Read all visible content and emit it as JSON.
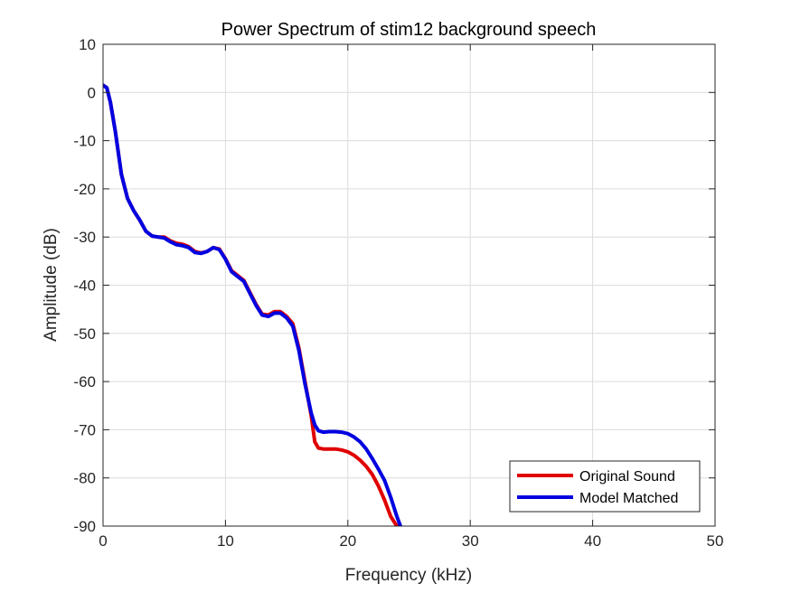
{
  "chart_data": {
    "type": "line",
    "title": "Power Spectrum of stim12 background speech",
    "xlabel": "Frequency (kHz)",
    "ylabel": "Amplitude (dB)",
    "xlim": [
      0,
      50
    ],
    "ylim": [
      -90,
      10
    ],
    "xticks": [
      "0",
      "10",
      "20",
      "30",
      "40",
      "50"
    ],
    "yticks": [
      "10",
      "0",
      "-10",
      "-20",
      "-30",
      "-40",
      "-50",
      "-60",
      "-70",
      "-80",
      "-90"
    ],
    "grid": true,
    "legend_position": "bottom-right",
    "series": [
      {
        "name": "Original Sound",
        "color": "#e00000",
        "x": [
          0,
          0.3,
          0.6,
          1.0,
          1.5,
          2.0,
          2.5,
          3.0,
          3.5,
          4.0,
          4.5,
          5.0,
          5.5,
          6.0,
          6.5,
          7.0,
          7.5,
          8.0,
          8.5,
          9.0,
          9.5,
          10.0,
          10.5,
          11.0,
          11.5,
          12.0,
          12.5,
          13.0,
          13.5,
          14.0,
          14.5,
          15.0,
          15.5,
          16.0,
          16.5,
          17.0,
          17.3,
          17.6,
          18.0,
          18.5,
          19.0,
          19.5,
          20.0,
          20.5,
          21.0,
          21.5,
          22.0,
          22.5,
          23.0,
          23.5,
          24.0
        ],
        "values": [
          1.5,
          1.0,
          -2.0,
          -8.0,
          -17.0,
          -22.0,
          -24.5,
          -26.5,
          -28.8,
          -29.8,
          -30.0,
          -30.0,
          -30.8,
          -31.3,
          -31.5,
          -32.0,
          -33.0,
          -33.3,
          -33.0,
          -32.2,
          -32.5,
          -34.5,
          -37.0,
          -38.0,
          -39.0,
          -41.5,
          -44.0,
          -46.0,
          -46.2,
          -45.5,
          -45.5,
          -46.5,
          -48.0,
          -53.0,
          -60.0,
          -67.0,
          -72.5,
          -73.8,
          -74.0,
          -74.0,
          -74.0,
          -74.2,
          -74.6,
          -75.3,
          -76.3,
          -77.6,
          -79.3,
          -81.7,
          -84.6,
          -88.0,
          -90.0
        ]
      },
      {
        "name": "Model Matched",
        "color": "#0000e0",
        "x": [
          0,
          0.3,
          0.6,
          1.0,
          1.5,
          2.0,
          2.5,
          3.0,
          3.5,
          4.0,
          4.5,
          5.0,
          5.5,
          6.0,
          6.5,
          7.0,
          7.5,
          8.0,
          8.5,
          9.0,
          9.5,
          10.0,
          10.5,
          11.0,
          11.5,
          12.0,
          12.5,
          13.0,
          13.5,
          14.0,
          14.5,
          15.0,
          15.5,
          16.0,
          16.5,
          17.0,
          17.3,
          17.6,
          18.0,
          18.5,
          19.0,
          19.5,
          20.0,
          20.5,
          21.0,
          21.5,
          22.0,
          22.5,
          23.0,
          23.5,
          24.0,
          24.3
        ],
        "values": [
          1.5,
          1.0,
          -2.0,
          -8.0,
          -17.0,
          -22.0,
          -24.5,
          -26.5,
          -28.8,
          -29.8,
          -30.0,
          -30.2,
          -31.0,
          -31.6,
          -31.8,
          -32.2,
          -33.2,
          -33.4,
          -33.0,
          -32.2,
          -32.6,
          -34.6,
          -37.2,
          -38.2,
          -39.2,
          -41.7,
          -44.2,
          -46.2,
          -46.5,
          -45.8,
          -45.8,
          -46.8,
          -48.5,
          -53.5,
          -60.5,
          -66.5,
          -69.0,
          -70.2,
          -70.5,
          -70.4,
          -70.4,
          -70.5,
          -70.8,
          -71.5,
          -72.5,
          -74.0,
          -76.0,
          -78.2,
          -80.5,
          -84.0,
          -88.0,
          -90.0
        ]
      }
    ]
  }
}
